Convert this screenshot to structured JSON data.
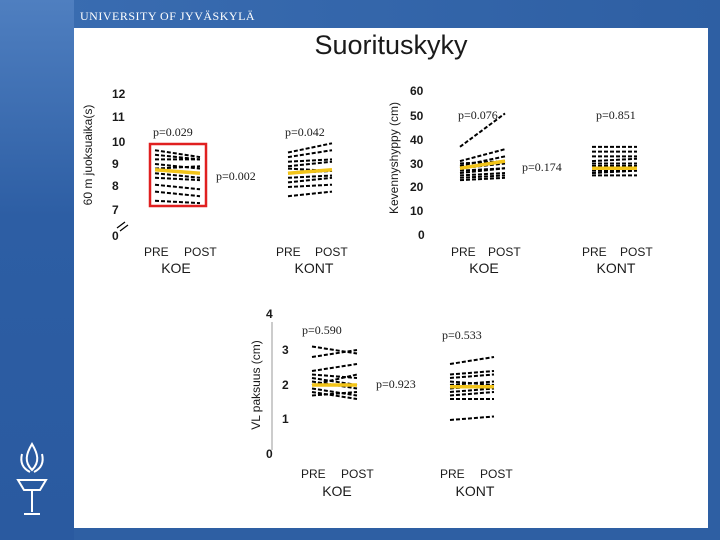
{
  "header": {
    "university": "UNIVERSITY OF JYVÄSKYLÄ",
    "title": "Suorituskyky"
  },
  "colors": {
    "background_band": "#2e5fa3",
    "individual_lines": "#000000",
    "mean_line": "#f2c419",
    "highlight_box": "#e02020"
  },
  "icons": {
    "logo": "university-torch-logo-icon"
  },
  "chart_data": [
    {
      "type": "line",
      "ylabel": "60 m juoksuaika(s)",
      "yticks": [
        "0",
        "7",
        "8",
        "9",
        "10",
        "11",
        "12"
      ],
      "ylim": [
        7,
        12
      ],
      "axis_break": true,
      "panels": [
        {
          "label": "KOE",
          "x_labels": [
            "PRE",
            "POST"
          ],
          "p_within": "p=0.029",
          "highlighted": true,
          "individual": [
            [
              9.6,
              9.3
            ],
            [
              9.4,
              9.2
            ],
            [
              9.2,
              9.2
            ],
            [
              9.0,
              8.8
            ],
            [
              8.8,
              8.9
            ],
            [
              8.6,
              8.4
            ],
            [
              8.4,
              8.3
            ],
            [
              8.1,
              7.9
            ],
            [
              7.8,
              7.6
            ],
            [
              7.4,
              7.3
            ]
          ],
          "mean": [
            8.75,
            8.6
          ]
        },
        {
          "label": "KONT",
          "x_labels": [
            "PRE",
            "POST"
          ],
          "p_within": "p=0.042",
          "individual": [
            [
              9.5,
              9.9
            ],
            [
              9.3,
              9.6
            ],
            [
              9.1,
              9.2
            ],
            [
              8.9,
              9.1
            ],
            [
              8.8,
              8.7
            ],
            [
              8.6,
              8.7
            ],
            [
              8.4,
              8.5
            ],
            [
              8.2,
              8.4
            ],
            [
              8.0,
              8.1
            ],
            [
              7.6,
              7.8
            ]
          ],
          "mean": [
            8.6,
            8.75
          ]
        }
      ],
      "p_between": "p=0.002"
    },
    {
      "type": "line",
      "ylabel": "Kevennyshyppy (cm)",
      "yticks": [
        "0",
        "10",
        "20",
        "30",
        "40",
        "50",
        "60"
      ],
      "ylim": [
        0,
        60
      ],
      "panels": [
        {
          "label": "KOE",
          "x_labels": [
            "PRE",
            "POST"
          ],
          "p_within": "p=0.076",
          "individual": [
            [
              37,
              51
            ],
            [
              31,
              36
            ],
            [
              30,
              31
            ],
            [
              29,
              33
            ],
            [
              28,
              30
            ],
            [
              27,
              28
            ],
            [
              26,
              28
            ],
            [
              25,
              26
            ],
            [
              24,
              25
            ],
            [
              23,
              24
            ]
          ],
          "mean": [
            28,
            31
          ]
        },
        {
          "label": "KONT",
          "x_labels": [
            "PRE",
            "POST"
          ],
          "p_within": "p=0.851",
          "individual": [
            [
              37,
              37
            ],
            [
              35,
              35
            ],
            [
              33,
              33
            ],
            [
              31,
              32
            ],
            [
              30,
              30
            ],
            [
              29,
              29
            ],
            [
              28,
              28
            ],
            [
              27,
              27
            ],
            [
              26,
              27
            ],
            [
              25,
              25
            ]
          ],
          "mean": [
            28,
            28
          ]
        }
      ],
      "p_between": "p=0.174"
    },
    {
      "type": "line",
      "ylabel": "VL paksuus (cm)",
      "yticks": [
        "0",
        "1",
        "2",
        "3",
        "4"
      ],
      "ylim": [
        0,
        4
      ],
      "panels": [
        {
          "label": "KOE",
          "x_labels": [
            "PRE",
            "POST"
          ],
          "p_within": "p=0.590",
          "individual": [
            [
              3.1,
              2.9
            ],
            [
              2.8,
              3.0
            ],
            [
              2.4,
              2.6
            ],
            [
              2.3,
              2.2
            ],
            [
              2.2,
              2.0
            ],
            [
              2.1,
              1.9
            ],
            [
              2.0,
              2.3
            ],
            [
              1.9,
              1.7
            ],
            [
              1.8,
              1.6
            ],
            [
              1.7,
              1.8
            ]
          ],
          "mean": [
            2.0,
            2.0
          ]
        },
        {
          "label": "KONT",
          "x_labels": [
            "PRE",
            "POST"
          ],
          "p_within": "p=0.533",
          "individual": [
            [
              2.6,
              2.8
            ],
            [
              2.3,
              2.4
            ],
            [
              2.2,
              2.3
            ],
            [
              2.1,
              2.0
            ],
            [
              2.0,
              2.1
            ],
            [
              1.9,
              2.0
            ],
            [
              1.8,
              1.9
            ],
            [
              1.7,
              1.8
            ],
            [
              1.6,
              1.6
            ],
            [
              1.0,
              1.1
            ]
          ],
          "mean": [
            1.95,
            1.95
          ]
        }
      ],
      "p_between": "p=0.923"
    }
  ]
}
